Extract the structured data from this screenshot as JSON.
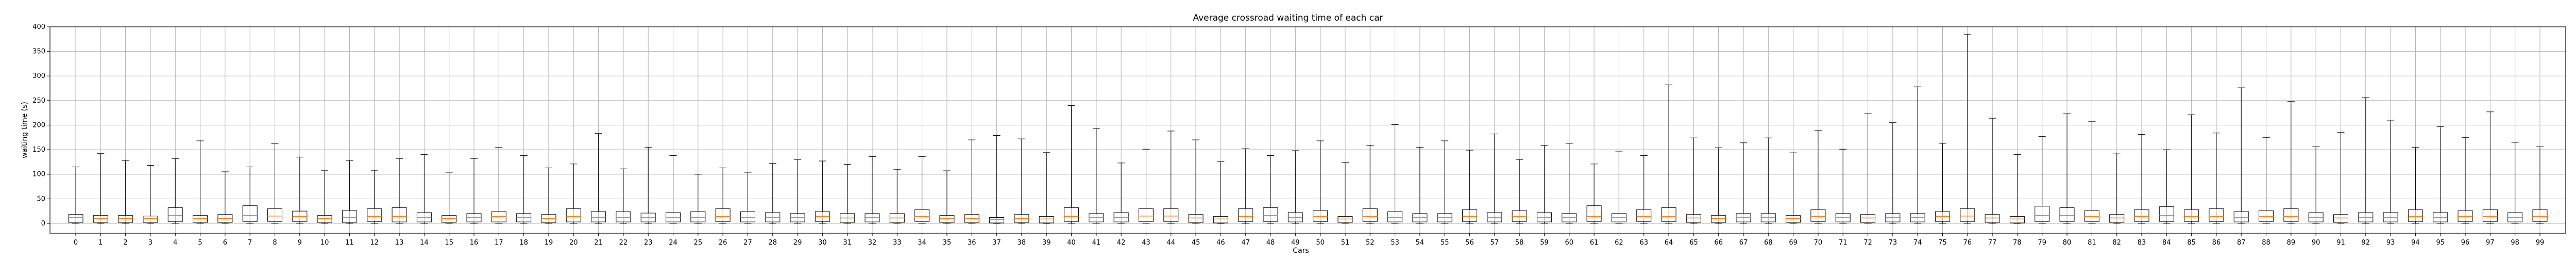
{
  "chart_data": {
    "type": "boxplot",
    "title": "Average crossroad waiting time of each car",
    "xlabel": "Cars",
    "ylabel": "waiting time (s)",
    "ylim": [
      -20,
      400
    ],
    "yticks": [
      0,
      50,
      100,
      150,
      200,
      250,
      300,
      350,
      400
    ],
    "grid": true,
    "categories": [
      "0",
      "1",
      "2",
      "3",
      "4",
      "5",
      "6",
      "7",
      "8",
      "9",
      "10",
      "11",
      "12",
      "13",
      "14",
      "15",
      "16",
      "17",
      "18",
      "19",
      "20",
      "21",
      "22",
      "23",
      "24",
      "25",
      "26",
      "27",
      "28",
      "29",
      "30",
      "31",
      "32",
      "33",
      "34",
      "35",
      "36",
      "37",
      "38",
      "39",
      "40",
      "41",
      "42",
      "43",
      "44",
      "45",
      "46",
      "47",
      "48",
      "49",
      "50",
      "51",
      "52",
      "53",
      "54",
      "55",
      "56",
      "57",
      "58",
      "59",
      "60",
      "61",
      "62",
      "63",
      "64",
      "65",
      "66",
      "67",
      "68",
      "69",
      "70",
      "71",
      "72",
      "73",
      "74",
      "75",
      "76",
      "77",
      "78",
      "79",
      "80",
      "81",
      "82",
      "83",
      "84",
      "85",
      "86",
      "87",
      "88",
      "89",
      "90",
      "91",
      "92",
      "93",
      "94",
      "95",
      "96",
      "97",
      "98",
      "99"
    ],
    "whisker_high": [
      115,
      142,
      128,
      118,
      132,
      168,
      105,
      115,
      162,
      135,
      108,
      128,
      108,
      132,
      140,
      104,
      132,
      155,
      138,
      113,
      121,
      183,
      111,
      155,
      138,
      100,
      113,
      104,
      122,
      130,
      127,
      120,
      136,
      110,
      136,
      107,
      170,
      179,
      172,
      144,
      240,
      193,
      123,
      151,
      188,
      170,
      126,
      152,
      138,
      148,
      168,
      124,
      159,
      201,
      155,
      168,
      149,
      182,
      130,
      159,
      163,
      121,
      147,
      138,
      282,
      174,
      154,
      164,
      174,
      145,
      189,
      151,
      223,
      205,
      278,
      163,
      385,
      214,
      140,
      177,
      223,
      207,
      143,
      181,
      150,
      221,
      184,
      276,
      175,
      248,
      156,
      185,
      256,
      210,
      155,
      197,
      175,
      227,
      165,
      156
    ],
    "q3": [
      18,
      16,
      16,
      15,
      32,
      16,
      18,
      36,
      30,
      25,
      16,
      26,
      30,
      32,
      22,
      16,
      20,
      24,
      20,
      18,
      30,
      24,
      24,
      21,
      22,
      24,
      30,
      24,
      22,
      20,
      24,
      20,
      20,
      20,
      28,
      16,
      18,
      12,
      18,
      14,
      32,
      20,
      22,
      30,
      30,
      18,
      14,
      30,
      32,
      22,
      26,
      14,
      30,
      24,
      20,
      20,
      28,
      22,
      26,
      22,
      20,
      36,
      20,
      28,
      32,
      18,
      16,
      20,
      20,
      16,
      28,
      20,
      18,
      20,
      20,
      24,
      30,
      18,
      14,
      35,
      32,
      26,
      18,
      28,
      34,
      28,
      30,
      24,
      26,
      30,
      22,
      18,
      22,
      22,
      28,
      22,
      26,
      28,
      22,
      28
    ],
    "median": [
      12,
      10,
      10,
      10,
      16,
      10,
      10,
      16,
      15,
      14,
      10,
      12,
      14,
      14,
      12,
      10,
      12,
      14,
      12,
      10,
      14,
      12,
      12,
      12,
      12,
      12,
      14,
      12,
      12,
      12,
      14,
      11,
      12,
      11,
      14,
      10,
      10,
      8,
      10,
      9,
      14,
      12,
      12,
      15,
      15,
      11,
      9,
      14,
      16,
      12,
      14,
      9,
      14,
      12,
      12,
      12,
      14,
      12,
      14,
      12,
      12,
      14,
      12,
      14,
      14,
      11,
      10,
      12,
      12,
      10,
      14,
      12,
      11,
      12,
      12,
      14,
      15,
      11,
      9,
      16,
      16,
      14,
      11,
      14,
      16,
      14,
      14,
      12,
      14,
      14,
      12,
      11,
      12,
      12,
      14,
      12,
      14,
      14,
      12,
      14
    ],
    "q1": [
      2,
      2,
      2,
      2,
      4,
      2,
      2,
      4,
      4,
      4,
      2,
      2,
      4,
      3,
      3,
      2,
      3,
      3,
      3,
      2,
      3,
      3,
      3,
      3,
      3,
      3,
      4,
      3,
      3,
      3,
      4,
      2,
      3,
      2,
      4,
      2,
      2,
      1,
      2,
      1,
      4,
      3,
      3,
      4,
      4,
      2,
      1,
      4,
      4,
      3,
      4,
      2,
      4,
      3,
      3,
      3,
      4,
      3,
      4,
      3,
      3,
      4,
      3,
      4,
      4,
      2,
      2,
      3,
      3,
      2,
      4,
      3,
      2,
      3,
      3,
      4,
      4,
      2,
      1,
      4,
      4,
      4,
      2,
      4,
      4,
      4,
      4,
      3,
      4,
      4,
      3,
      2,
      3,
      3,
      4,
      3,
      4,
      4,
      3,
      4
    ]
  }
}
